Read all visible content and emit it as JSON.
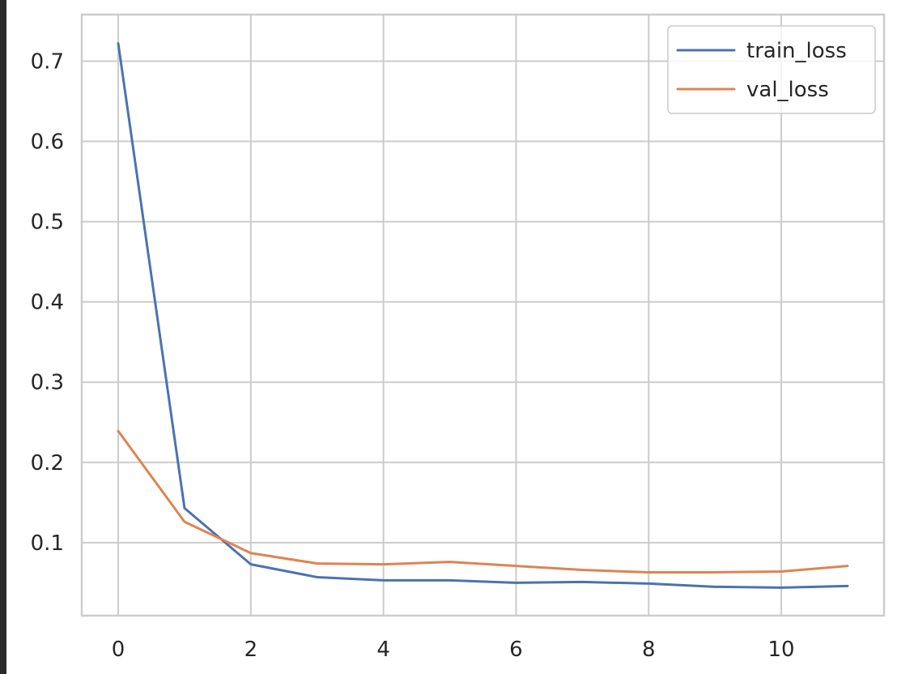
{
  "chart_data": {
    "type": "line",
    "title": "",
    "xlabel": "",
    "ylabel": "",
    "xlim": [
      -0.55,
      11.55
    ],
    "ylim": [
      0.009,
      0.758
    ],
    "x_ticks": [
      0,
      2,
      4,
      6,
      8,
      10
    ],
    "y_ticks": [
      0.1,
      0.2,
      0.3,
      0.4,
      0.5,
      0.6,
      0.7
    ],
    "grid": true,
    "legend_position": "top-right",
    "x": [
      0,
      1,
      2,
      3,
      4,
      5,
      6,
      7,
      8,
      9,
      10,
      11
    ],
    "series": [
      {
        "name": "train_loss",
        "color": "#4c72b0",
        "values": [
          0.722,
          0.143,
          0.073,
          0.057,
          0.053,
          0.053,
          0.05,
          0.051,
          0.049,
          0.045,
          0.044,
          0.046
        ]
      },
      {
        "name": "val_loss",
        "color": "#dd8452",
        "values": [
          0.239,
          0.126,
          0.087,
          0.074,
          0.073,
          0.076,
          0.071,
          0.066,
          0.063,
          0.063,
          0.064,
          0.071
        ]
      }
    ]
  }
}
